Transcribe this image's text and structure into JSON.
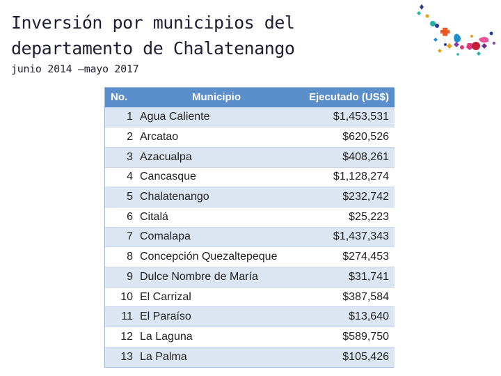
{
  "slide": {
    "title_line1": "Inversión por municipios del",
    "title_line2": "departamento de Chalatenango",
    "subtitle": "junio 2014 –mayo 2017"
  },
  "table": {
    "headers": {
      "no": "No.",
      "municipio": "Municipio",
      "ejecutado": "Ejecutado (US$)"
    },
    "rows": [
      {
        "no": "1",
        "municipio": "Agua Caliente",
        "ejecutado": "$1,453,531"
      },
      {
        "no": "2",
        "municipio": "Arcatao",
        "ejecutado": "$620,526"
      },
      {
        "no": "3",
        "municipio": "Azacualpa",
        "ejecutado": "$408,261"
      },
      {
        "no": "4",
        "municipio": "Cancasque",
        "ejecutado": "$1,128,274"
      },
      {
        "no": "5",
        "municipio": "Chalatenango",
        "ejecutado": "$232,742"
      },
      {
        "no": "6",
        "municipio": "Citalá",
        "ejecutado": "$25,223"
      },
      {
        "no": "7",
        "municipio": "Comalapa",
        "ejecutado": "$1,437,343"
      },
      {
        "no": "8",
        "municipio": "Concepción Quezaltepeque",
        "ejecutado": "$274,453"
      },
      {
        "no": "9",
        "municipio": "Dulce Nombre de María",
        "ejecutado": "$31,741"
      },
      {
        "no": "10",
        "municipio": "El Carrizal",
        "ejecutado": "$387,584"
      },
      {
        "no": "11",
        "municipio": "El Paraíso",
        "ejecutado": "$13,640"
      },
      {
        "no": "12",
        "municipio": "La Laguna",
        "ejecutado": "$589,750"
      },
      {
        "no": "13",
        "municipio": "La Palma",
        "ejecutado": "$105,426"
      }
    ]
  },
  "logo": {
    "icon": "decorative-confetti-logo"
  },
  "colors": {
    "header_bg": "#5b8fcb",
    "row_alt": "#dce6f3"
  }
}
